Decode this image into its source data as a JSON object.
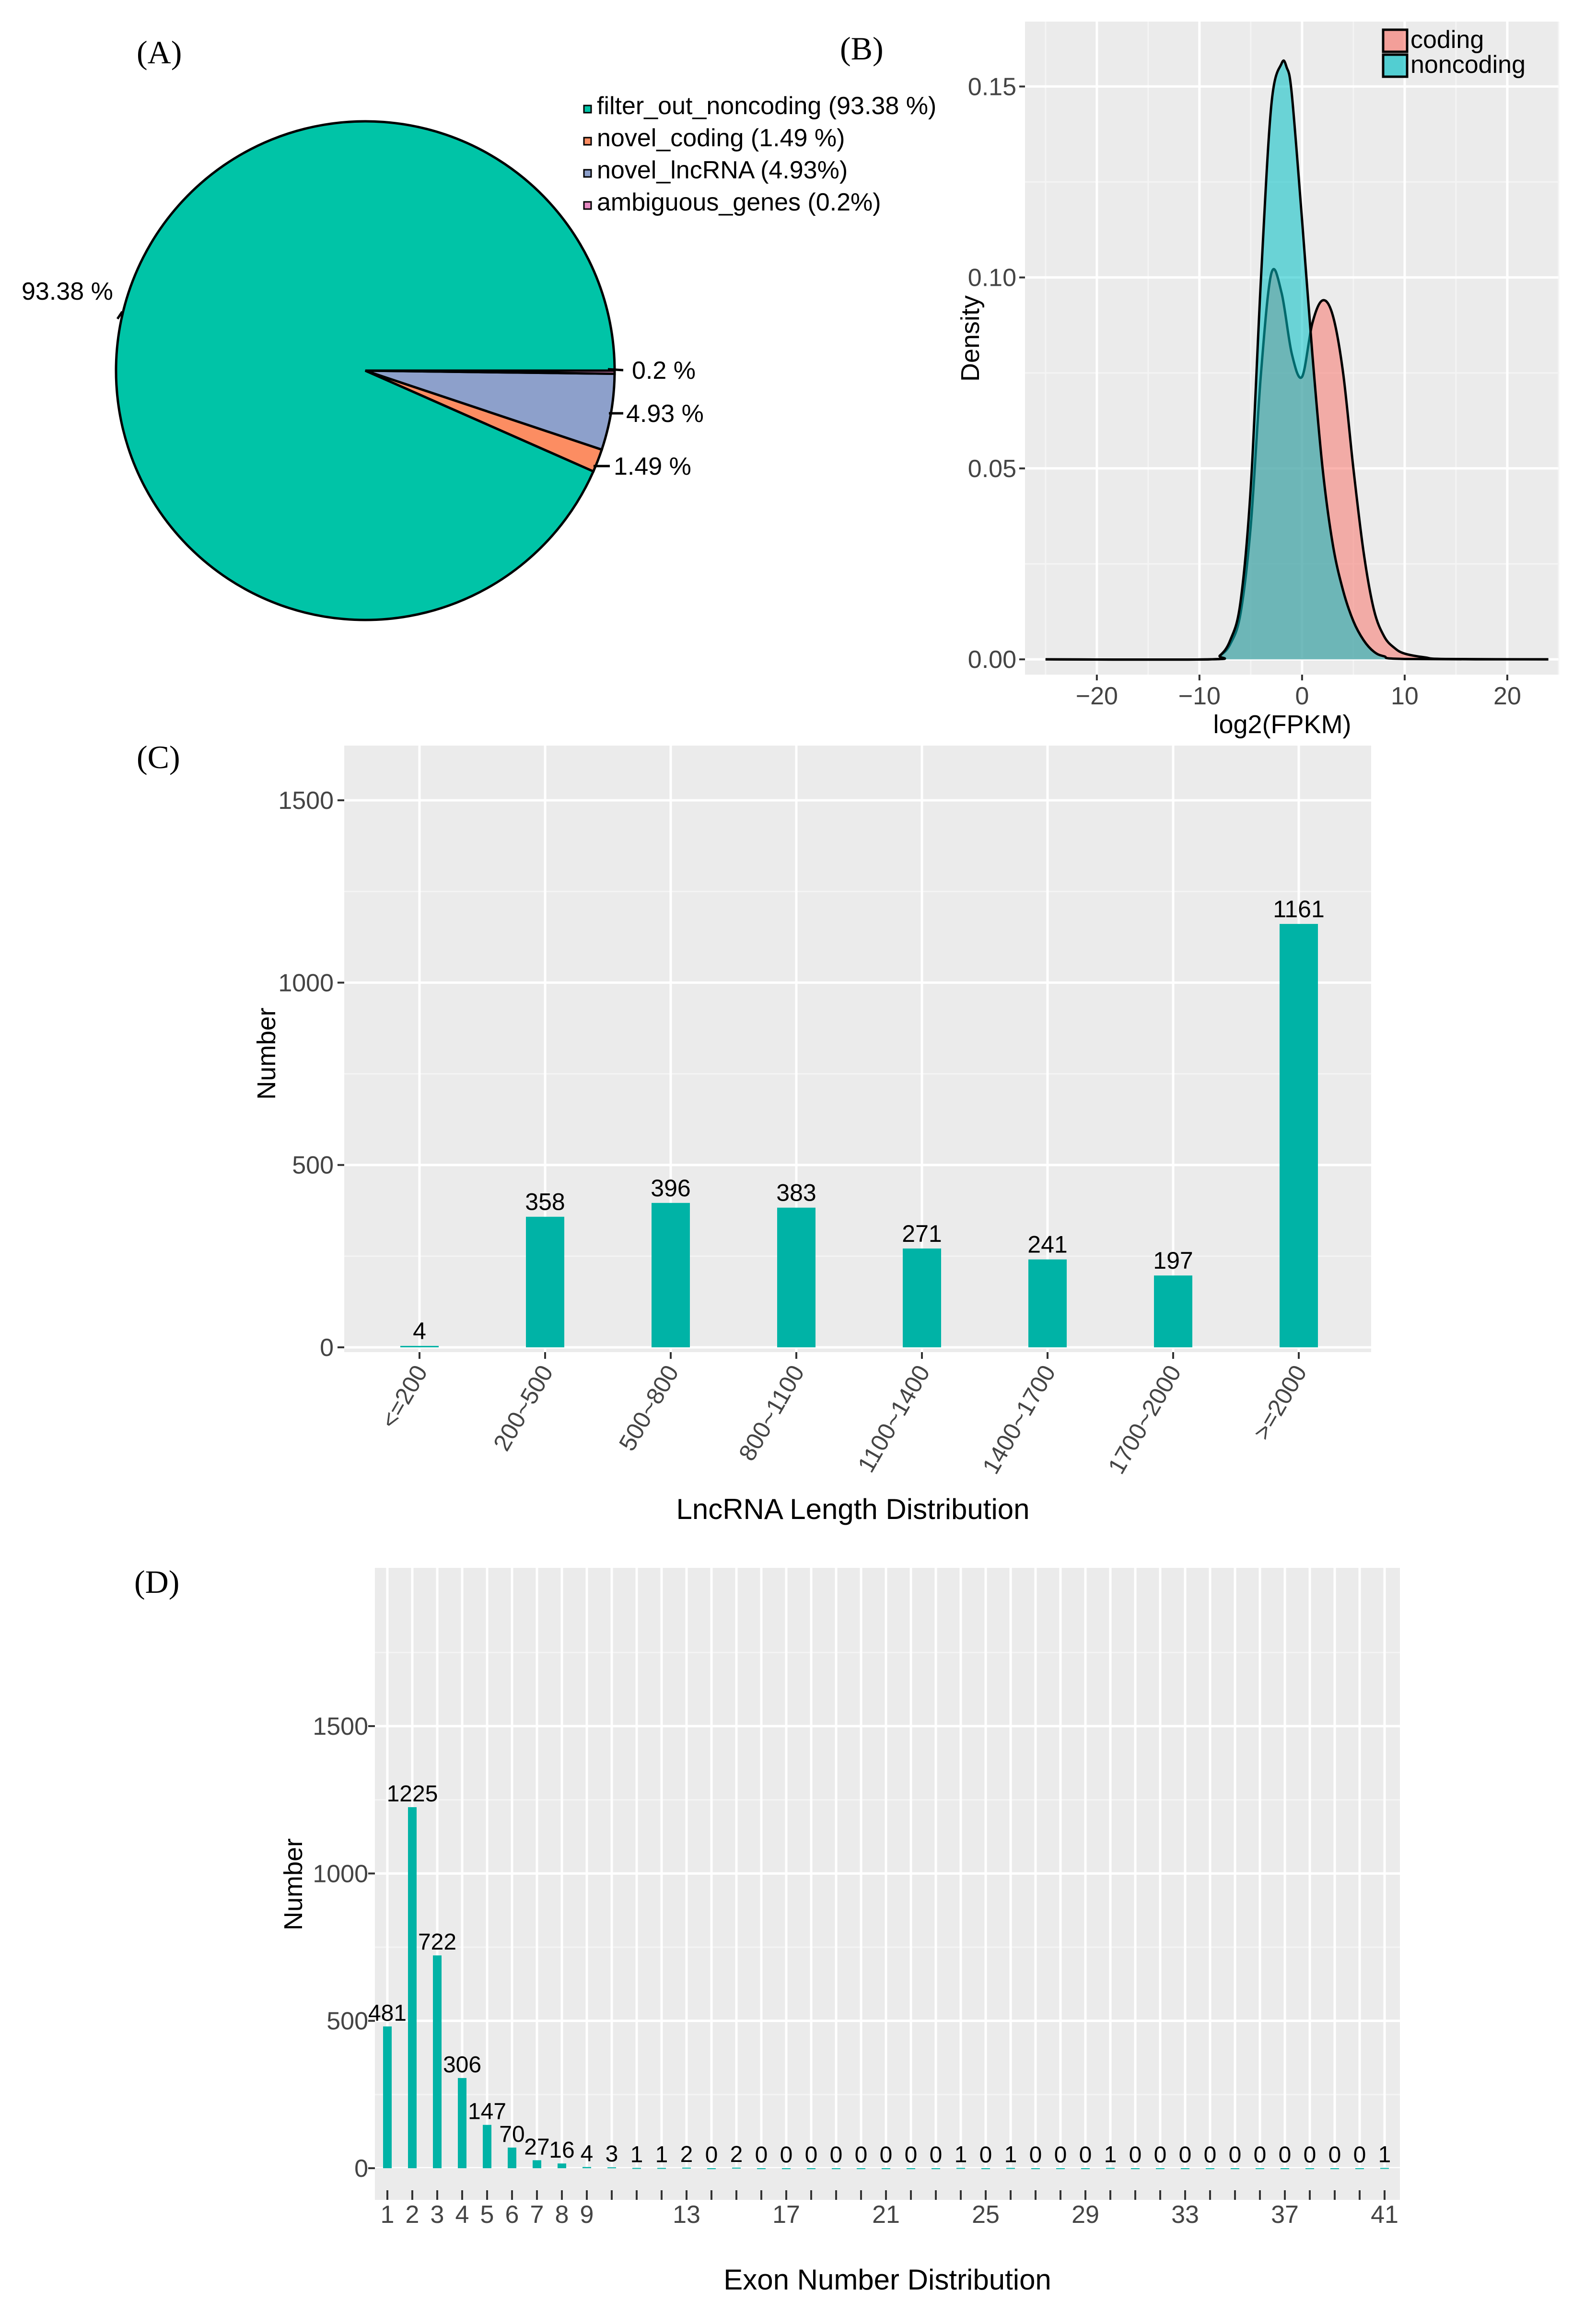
{
  "panels": {
    "a": {
      "label": "(A)"
    },
    "b": {
      "label": "(B)"
    },
    "c": {
      "label": "(C)"
    },
    "d": {
      "label": "(D)"
    }
  },
  "chart_data": [
    {
      "type": "pie",
      "slices": [
        {
          "name": "filter_out_noncoding",
          "legend": "filter_out_noncoding (93.38 %)",
          "value": 93.38,
          "label": "93.38 %",
          "color": "#00c4a7"
        },
        {
          "name": "novel_coding",
          "legend": "novel_coding (1.49 %)",
          "value": 1.49,
          "label": "1.49 %",
          "color": "#fc8d62"
        },
        {
          "name": "novel_lncRNA",
          "legend": "novel_lncRNA (4.93%)",
          "value": 4.93,
          "label": "4.93 %",
          "color": "#8da0cb"
        },
        {
          "name": "ambiguous_genes",
          "legend": "ambiguous_genes (0.2%)",
          "value": 0.2,
          "label": "0.2 %",
          "color": "#e78ac3"
        }
      ],
      "legend_placement": "top-right"
    },
    {
      "type": "area",
      "xlabel": "log2(FPKM)",
      "ylabel": "Density",
      "xlim": [
        -27,
        25
      ],
      "ylim": [
        -0.004,
        0.167
      ],
      "xticks": [
        -20,
        -10,
        0,
        10,
        20
      ],
      "yticks": [
        0.0,
        0.05,
        0.1,
        0.15
      ],
      "ytick_labels": [
        "0.00",
        "0.05",
        "0.10",
        "0.15"
      ],
      "grid": true,
      "legend_placement": "top-right",
      "series": [
        {
          "name": "coding",
          "color": "#f8766d",
          "x": [
            -25,
            -9,
            -8,
            -7,
            -6,
            -5,
            -4,
            -3,
            -2,
            -1,
            0,
            1,
            2,
            3,
            4,
            5,
            6,
            7,
            8,
            9,
            10,
            12,
            14,
            24
          ],
          "y": [
            0,
            0,
            0.001,
            0.004,
            0.012,
            0.035,
            0.075,
            0.101,
            0.096,
            0.08,
            0.074,
            0.088,
            0.094,
            0.09,
            0.075,
            0.05,
            0.028,
            0.013,
            0.006,
            0.003,
            0.0015,
            0.0005,
            0.0001,
            0
          ]
        },
        {
          "name": "noncoding",
          "color": "#00bfc4",
          "x": [
            -25,
            -9,
            -8,
            -7,
            -6,
            -5,
            -4,
            -3,
            -2,
            -1.5,
            -1,
            0,
            1,
            2,
            3,
            4,
            5,
            6,
            7,
            8,
            10,
            24
          ],
          "y": [
            0,
            0,
            0.001,
            0.005,
            0.015,
            0.045,
            0.1,
            0.145,
            0.156,
            0.155,
            0.148,
            0.115,
            0.08,
            0.05,
            0.03,
            0.018,
            0.01,
            0.005,
            0.002,
            0.0008,
            0.0001,
            0
          ]
        }
      ]
    },
    {
      "type": "bar",
      "xlabel": "LncRNA Length Distribution",
      "ylabel": "Number",
      "categories": [
        "<=200",
        "200~500",
        "500~800",
        "800~1100",
        "1100~1400",
        "1400~1700",
        "1700~2000",
        ">=2000"
      ],
      "values": [
        4,
        358,
        396,
        383,
        271,
        241,
        197,
        1161
      ],
      "ylim": [
        0,
        1650
      ],
      "yticks": [
        0,
        500,
        1000,
        1500
      ],
      "grid": true,
      "color": "#00b3a6"
    },
    {
      "type": "bar",
      "xlabel": "Exon Number Distribution",
      "ylabel": "Number",
      "categories": [
        1,
        2,
        3,
        4,
        5,
        6,
        7,
        8,
        9,
        10,
        11,
        12,
        13,
        14,
        15,
        16,
        17,
        18,
        19,
        20,
        21,
        22,
        23,
        24,
        25,
        26,
        27,
        28,
        29,
        30,
        31,
        32,
        33,
        34,
        35,
        36,
        37,
        38,
        39,
        40,
        41
      ],
      "values": [
        481,
        1225,
        722,
        306,
        147,
        70,
        27,
        16,
        4,
        3,
        1,
        1,
        2,
        0,
        2,
        0,
        0,
        0,
        0,
        0,
        0,
        0,
        0,
        1,
        0,
        1,
        0,
        0,
        0,
        1,
        0,
        0,
        0,
        0,
        0,
        0,
        0,
        0,
        0,
        0,
        1
      ],
      "xtick_labels": [
        "1",
        "2",
        "3",
        "4",
        "5",
        "6",
        "7",
        "8",
        "9",
        "13",
        "17",
        "21",
        "25",
        "29",
        "33",
        "37",
        "41"
      ],
      "ylim": [
        0,
        1900
      ],
      "yticks": [
        0,
        500,
        1000,
        1500
      ],
      "grid": true,
      "color": "#00b3a6"
    }
  ]
}
